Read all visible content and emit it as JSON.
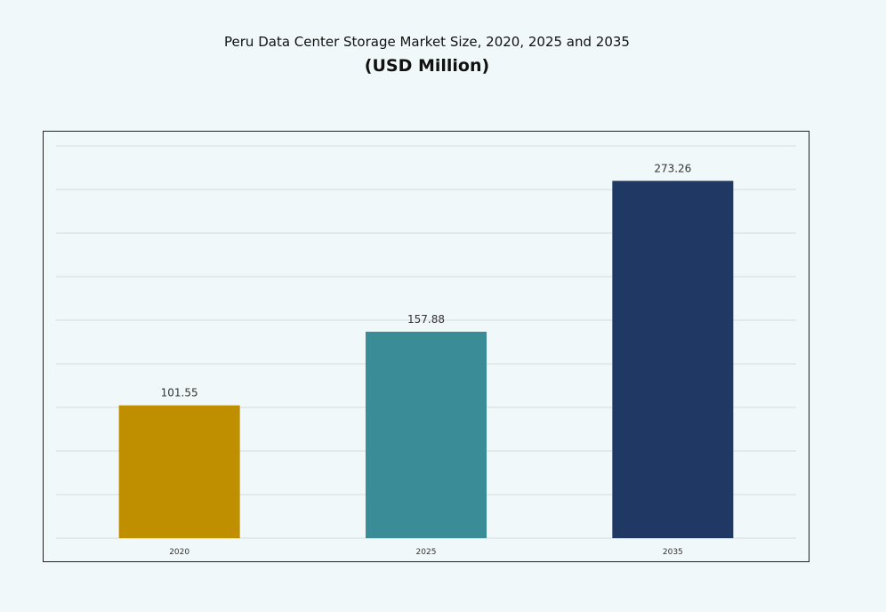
{
  "chart_data": {
    "type": "bar",
    "title": "Peru Data Center Storage Market Size, 2020, 2025 and 2035",
    "subtitle": "(USD Million)",
    "categories": [
      "2020",
      "2025",
      "2035"
    ],
    "values": [
      101.55,
      157.88,
      273.26
    ],
    "data_labels": [
      "101.55",
      "157.88",
      "273.26"
    ],
    "colors": [
      "#bf8f00",
      "#3a8d96",
      "#1f3864"
    ],
    "xlabel": "",
    "ylabel": "",
    "ylim": [
      0,
      300
    ],
    "grid": true,
    "legend": "none"
  }
}
